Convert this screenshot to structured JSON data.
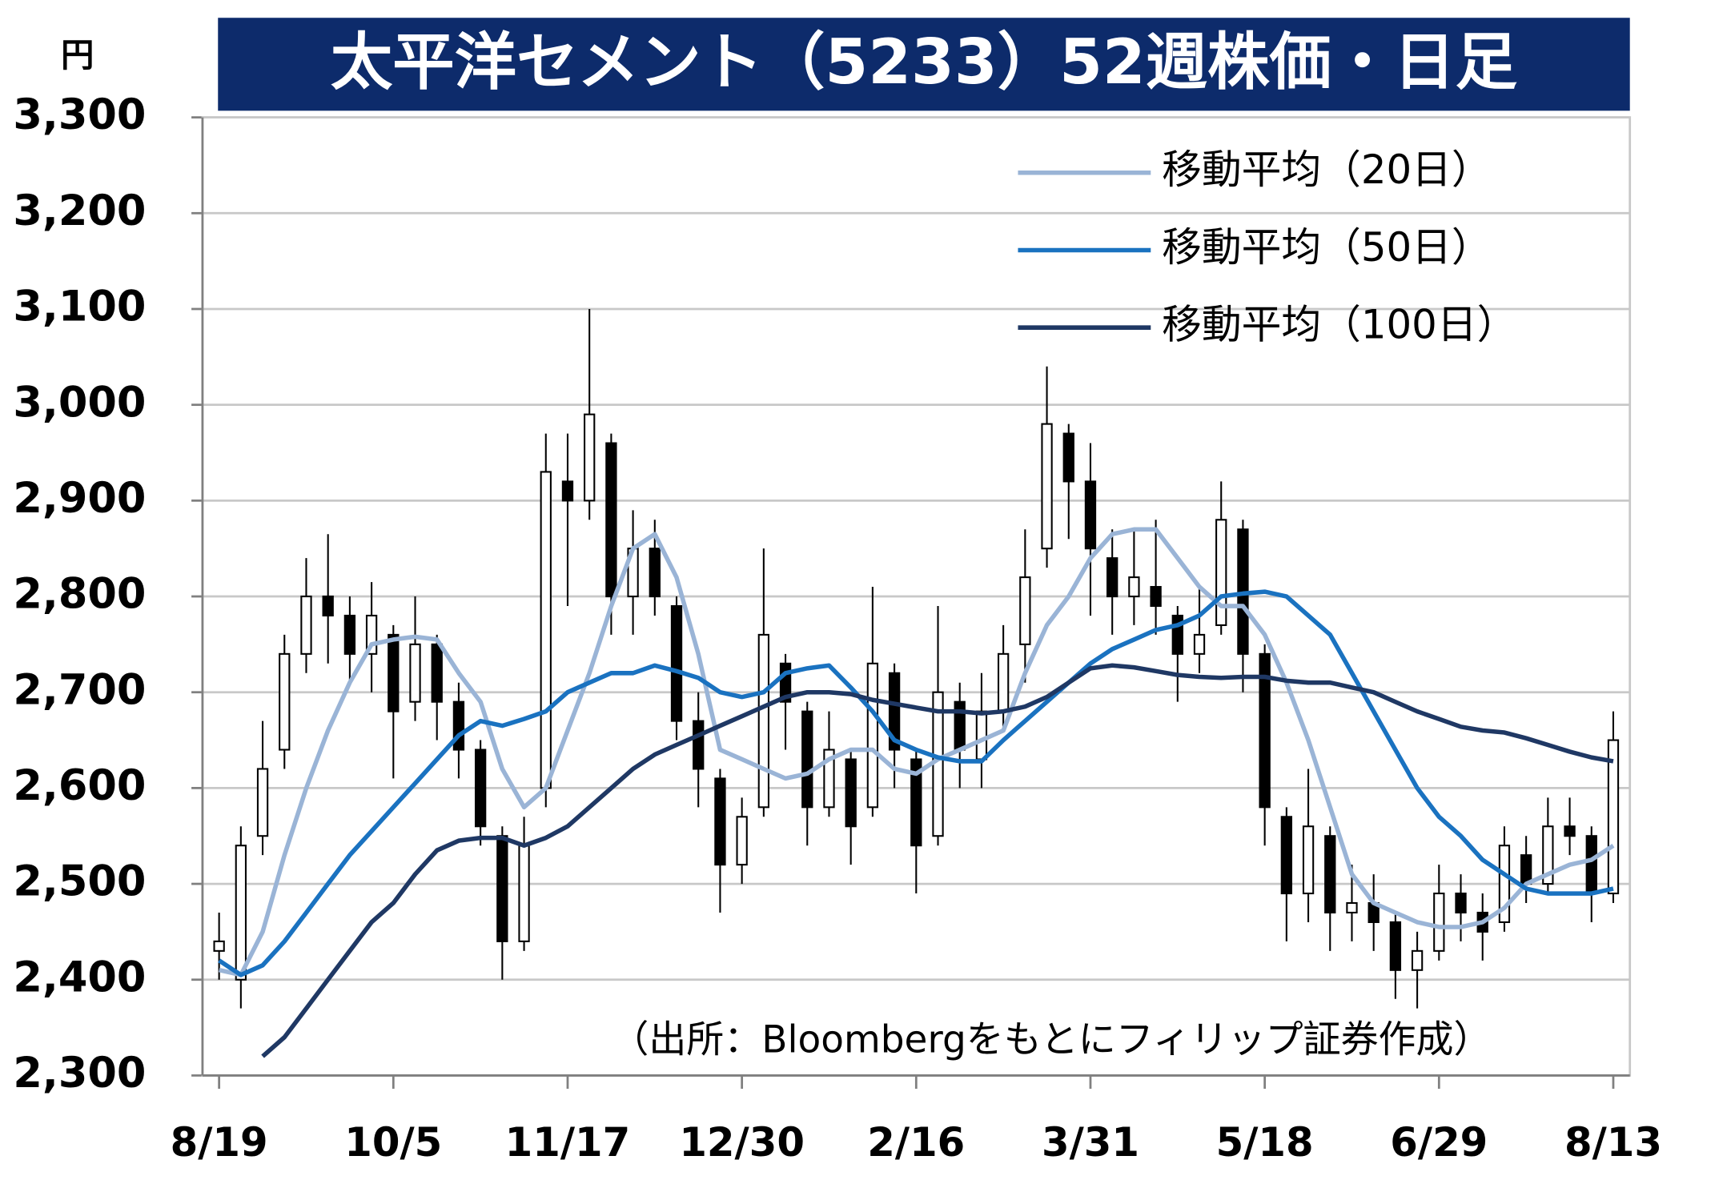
{
  "chart_data": {
    "type": "candlestick",
    "title": "太平洋セメント（5233）52週株価・日足",
    "y_unit": "円",
    "source": "（出所：Bloombergをもとにフィリップ証券作成）",
    "categories": [
      "8/19",
      null,
      null,
      null,
      null,
      null,
      null,
      null,
      "10/5",
      null,
      null,
      null,
      null,
      null,
      null,
      null,
      "11/17",
      null,
      null,
      null,
      null,
      null,
      null,
      null,
      "12/30",
      null,
      null,
      null,
      null,
      null,
      null,
      null,
      "2/16",
      null,
      null,
      null,
      null,
      null,
      null,
      null,
      "3/31",
      null,
      null,
      null,
      null,
      null,
      null,
      null,
      "5/18",
      null,
      null,
      null,
      null,
      null,
      null,
      null,
      "6/29",
      null,
      null,
      null,
      null,
      null,
      null,
      null,
      "8/13"
    ],
    "open": [
      2430,
      2400,
      2550,
      2640,
      2740,
      2800,
      2780,
      2740,
      2760,
      2690,
      2750,
      2690,
      2640,
      2550,
      2440,
      2600,
      2920,
      2900,
      2960,
      2800,
      2850,
      2790,
      2670,
      2610,
      2520,
      2580,
      2730,
      2680,
      2580,
      2630,
      2580,
      2720,
      2630,
      2550,
      2690,
      2630,
      2680,
      2750,
      2850,
      2970,
      2920,
      2840,
      2800,
      2810,
      2780,
      2740,
      2770,
      2870,
      2740,
      2570,
      2490,
      2550,
      2470,
      2480,
      2460,
      2410,
      2430,
      2490,
      2470,
      2460,
      2530,
      2500,
      2560,
      2550,
      2490
    ],
    "high": [
      2470,
      2560,
      2670,
      2760,
      2840,
      2865,
      2800,
      2815,
      2770,
      2800,
      2760,
      2710,
      2650,
      2560,
      2570,
      2970,
      2970,
      3100,
      2970,
      2890,
      2880,
      2800,
      2700,
      2620,
      2590,
      2850,
      2740,
      2690,
      2680,
      2640,
      2810,
      2730,
      2640,
      2790,
      2710,
      2720,
      2770,
      2870,
      3040,
      2980,
      2960,
      2870,
      2870,
      2880,
      2790,
      2810,
      2920,
      2880,
      2750,
      2580,
      2620,
      2560,
      2520,
      2510,
      2470,
      2450,
      2520,
      2510,
      2490,
      2560,
      2550,
      2590,
      2590,
      2560,
      2680
    ],
    "low": [
      2400,
      2370,
      2530,
      2620,
      2720,
      2730,
      2710,
      2700,
      2610,
      2670,
      2650,
      2610,
      2540,
      2400,
      2430,
      2580,
      2790,
      2880,
      2760,
      2760,
      2780,
      2650,
      2580,
      2470,
      2500,
      2570,
      2640,
      2540,
      2570,
      2520,
      2570,
      2600,
      2490,
      2540,
      2600,
      2600,
      2660,
      2710,
      2830,
      2860,
      2780,
      2760,
      2770,
      2760,
      2690,
      2720,
      2760,
      2700,
      2540,
      2440,
      2460,
      2430,
      2440,
      2430,
      2380,
      2370,
      2420,
      2440,
      2420,
      2450,
      2480,
      2490,
      2530,
      2460,
      2480
    ],
    "close": [
      2440,
      2540,
      2620,
      2740,
      2800,
      2780,
      2740,
      2780,
      2680,
      2750,
      2690,
      2640,
      2560,
      2440,
      2540,
      2930,
      2900,
      2990,
      2800,
      2850,
      2800,
      2670,
      2620,
      2520,
      2570,
      2760,
      2690,
      2580,
      2640,
      2560,
      2730,
      2640,
      2540,
      2700,
      2640,
      2680,
      2740,
      2820,
      2980,
      2920,
      2850,
      2800,
      2820,
      2790,
      2740,
      2760,
      2880,
      2740,
      2580,
      2490,
      2560,
      2470,
      2480,
      2460,
      2410,
      2430,
      2490,
      2470,
      2450,
      2540,
      2500,
      2560,
      2550,
      2490,
      2650
    ],
    "up_color": "#ffffff",
    "down_color": "#000000",
    "candle_edge": "#000000",
    "series": [
      {
        "name": "移動平均（20日）",
        "color": "#9ab4d6",
        "values": [
          2410,
          2405,
          2450,
          2530,
          2600,
          2660,
          2710,
          2750,
          2755,
          2758,
          2755,
          2720,
          2690,
          2620,
          2580,
          2600,
          2660,
          2720,
          2790,
          2850,
          2865,
          2820,
          2740,
          2640,
          2630,
          2620,
          2610,
          2615,
          2630,
          2640,
          2640,
          2620,
          2615,
          2630,
          2640,
          2650,
          2660,
          2720,
          2770,
          2800,
          2840,
          2865,
          2870,
          2870,
          2840,
          2810,
          2790,
          2790,
          2760,
          2710,
          2650,
          2580,
          2510,
          2480,
          2470,
          2460,
          2455,
          2455,
          2460,
          2475,
          2500,
          2510,
          2520,
          2525,
          2540
        ]
      },
      {
        "name": "移動平均（50日）",
        "color": "#1a72c0",
        "values": [
          2420,
          2405,
          2415,
          2440,
          2470,
          2500,
          2530,
          2555,
          2580,
          2605,
          2630,
          2655,
          2670,
          2665,
          2672,
          2680,
          2700,
          2710,
          2720,
          2720,
          2728,
          2722,
          2715,
          2700,
          2695,
          2700,
          2720,
          2725,
          2728,
          2705,
          2680,
          2650,
          2640,
          2632,
          2628,
          2628,
          2650,
          2670,
          2690,
          2710,
          2730,
          2745,
          2755,
          2765,
          2770,
          2780,
          2800,
          2803,
          2805,
          2800,
          2780,
          2760,
          2720,
          2680,
          2640,
          2600,
          2570,
          2550,
          2525,
          2510,
          2495,
          2490,
          2490,
          2490,
          2495
        ]
      },
      {
        "name": "移動平均（100日）",
        "color": "#1f3864",
        "values": [
          null,
          null,
          2320,
          2340,
          2370,
          2400,
          2430,
          2460,
          2480,
          2510,
          2535,
          2545,
          2548,
          2548,
          2540,
          2548,
          2560,
          2580,
          2600,
          2620,
          2635,
          2645,
          2655,
          2665,
          2675,
          2685,
          2695,
          2700,
          2700,
          2698,
          2692,
          2688,
          2684,
          2680,
          2680,
          2678,
          2680,
          2685,
          2695,
          2710,
          2725,
          2728,
          2726,
          2722,
          2718,
          2716,
          2715,
          2716,
          2716,
          2712,
          2710,
          2710,
          2705,
          2700,
          2690,
          2680,
          2672,
          2664,
          2660,
          2658,
          2652,
          2645,
          2638,
          2632,
          2628
        ]
      }
    ],
    "ylim": [
      2300,
      3300
    ],
    "yticks": [
      {
        "value": 2300,
        "label": "2,300"
      },
      {
        "value": 2400,
        "label": "2,400"
      },
      {
        "value": 2500,
        "label": "2,500"
      },
      {
        "value": 2600,
        "label": "2,600"
      },
      {
        "value": 2700,
        "label": "2,700"
      },
      {
        "value": 2800,
        "label": "2,800"
      },
      {
        "value": 2900,
        "label": "2,900"
      },
      {
        "value": 3000,
        "label": "3,000"
      },
      {
        "value": 3100,
        "label": "3,100"
      },
      {
        "value": 3200,
        "label": "3,200"
      },
      {
        "value": 3300,
        "label": "3,300"
      }
    ],
    "grid": true,
    "legend": "upper right",
    "title_bar_color": "#0d2b6b"
  }
}
